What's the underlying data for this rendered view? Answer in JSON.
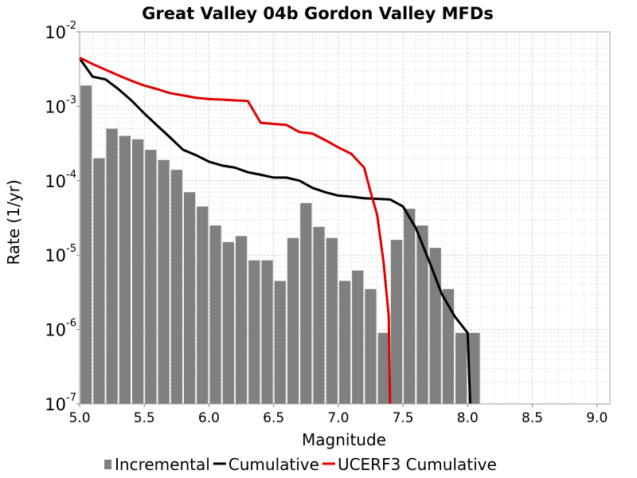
{
  "chart_data": {
    "type": "bar",
    "title": "Great Valley 04b Gordon Valley MFDs",
    "xlabel": "Magnitude",
    "ylabel": "Rate (1/yr)",
    "xlim": [
      5.0,
      9.1
    ],
    "ylim": [
      1e-07,
      0.01
    ],
    "y_scale": "log",
    "grid": true,
    "legend_position": "bottom",
    "x_ticks": [
      "5.0",
      "5.5",
      "6.0",
      "6.5",
      "7.0",
      "7.5",
      "8.0",
      "8.5",
      "9.0"
    ],
    "y_ticks": [
      {
        "mantissa": "10",
        "exponent": "-7"
      },
      {
        "mantissa": "10",
        "exponent": "-6"
      },
      {
        "mantissa": "10",
        "exponent": "-5"
      },
      {
        "mantissa": "10",
        "exponent": "-4"
      },
      {
        "mantissa": "10",
        "exponent": "-3"
      },
      {
        "mantissa": "10",
        "exponent": "-2"
      }
    ],
    "series": [
      {
        "name": "Incremental",
        "kind": "bar",
        "color": "#808080",
        "bin_width": 0.1,
        "x": [
          5.05,
          5.15,
          5.25,
          5.35,
          5.45,
          5.55,
          5.65,
          5.75,
          5.85,
          5.95,
          6.05,
          6.15,
          6.25,
          6.35,
          6.45,
          6.55,
          6.65,
          6.75,
          6.85,
          6.95,
          7.05,
          7.15,
          7.25,
          7.35,
          7.45,
          7.55,
          7.65,
          7.75,
          7.85,
          7.95,
          8.05
        ],
        "values": [
          0.0019,
          0.0002,
          0.0005,
          0.0004,
          0.00036,
          0.00026,
          0.00019,
          0.00014,
          7e-05,
          4.5e-05,
          2.5e-05,
          1.5e-05,
          1.8e-05,
          8.5e-06,
          8.5e-06,
          4.5e-06,
          1.7e-05,
          5e-05,
          2.4e-05,
          1.7e-05,
          4.5e-06,
          6.2e-06,
          3.5e-06,
          9e-07,
          1.6e-05,
          4.2e-05,
          2.5e-05,
          1.25e-05,
          3.5e-06,
          9e-07,
          9e-07
        ]
      },
      {
        "name": "Cumulative",
        "kind": "line",
        "color": "#000000",
        "x": [
          5.0,
          5.1,
          5.2,
          5.3,
          5.4,
          5.5,
          5.6,
          5.7,
          5.8,
          5.9,
          6.0,
          6.1,
          6.2,
          6.3,
          6.4,
          6.5,
          6.6,
          6.7,
          6.8,
          6.9,
          7.0,
          7.1,
          7.2,
          7.3,
          7.4,
          7.5,
          7.6,
          7.7,
          7.8,
          7.9,
          8.0,
          8.02
        ],
        "values": [
          0.0044,
          0.0025,
          0.0023,
          0.0017,
          0.0012,
          0.0008,
          0.00055,
          0.00038,
          0.00026,
          0.00022,
          0.00018,
          0.00016,
          0.00015,
          0.00013,
          0.00012,
          0.00011,
          0.00011,
          0.0001,
          8e-05,
          7e-05,
          6.3e-05,
          6.1e-05,
          5.8e-05,
          5.7e-05,
          5.6e-05,
          4.5e-05,
          2.3e-05,
          8.5e-06,
          3e-06,
          1.5e-06,
          9e-07,
          1e-07
        ]
      },
      {
        "name": "UCERF3 Cumulative",
        "kind": "line",
        "color": "#e00000",
        "x": [
          5.0,
          5.1,
          5.2,
          5.3,
          5.4,
          5.5,
          5.6,
          5.7,
          5.8,
          5.9,
          6.0,
          6.1,
          6.2,
          6.3,
          6.4,
          6.5,
          6.6,
          6.7,
          6.8,
          6.9,
          7.0,
          7.1,
          7.2,
          7.25,
          7.3,
          7.35,
          7.39,
          7.4
        ],
        "values": [
          0.0045,
          0.0037,
          0.0031,
          0.0026,
          0.0022,
          0.0019,
          0.0017,
          0.0015,
          0.0014,
          0.0013,
          0.00125,
          0.00123,
          0.0012,
          0.00118,
          0.0006,
          0.00058,
          0.00056,
          0.00045,
          0.00043,
          0.00035,
          0.00028,
          0.00023,
          0.00015,
          7e-05,
          3.5e-05,
          8e-06,
          1.5e-06,
          1e-07
        ]
      }
    ]
  }
}
